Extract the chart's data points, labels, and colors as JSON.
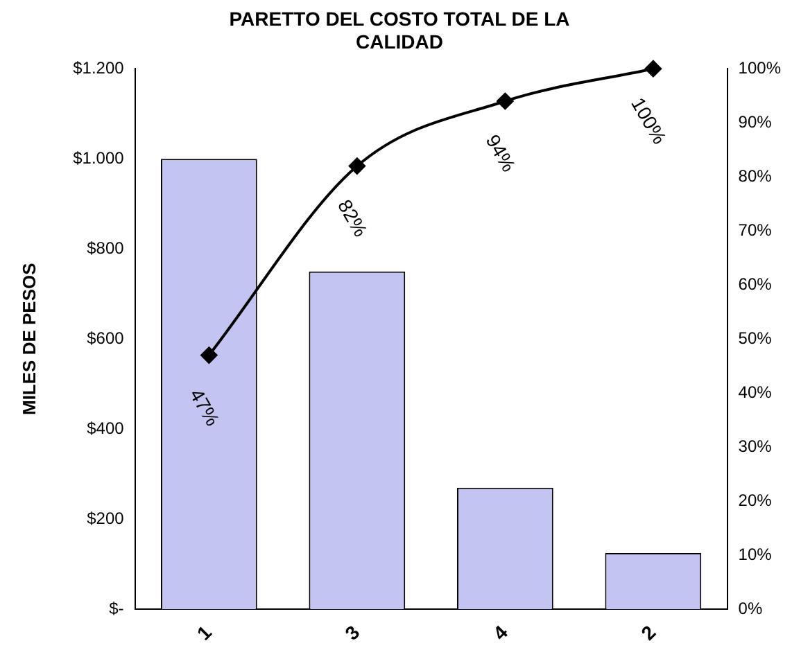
{
  "chart_data": {
    "type": "bar",
    "title": "PARETTO DEL COSTO TOTAL DE LA\nCALIDAD",
    "ylabel": "MILES DE PESOS",
    "categories": [
      "1",
      "3",
      "4",
      "2"
    ],
    "series": [
      {
        "color": "#c4c4f2",
        "values": [
          1000,
          750,
          270,
          125
        ]
      },
      {
        "type": "line",
        "axis": "y2",
        "color": "#000000",
        "values": [
          47,
          82,
          94,
          100
        ],
        "value_labels": [
          "47%",
          "82%",
          "94%",
          "100%"
        ]
      }
    ],
    "ylim": [
      0,
      1200
    ],
    "yticks": [
      {
        "value": 0,
        "label": "$-"
      },
      {
        "value": 200,
        "label": "$200"
      },
      {
        "value": 400,
        "label": "$400"
      },
      {
        "value": 600,
        "label": "$600"
      },
      {
        "value": 800,
        "label": "$800"
      },
      {
        "value": 1000,
        "label": "$1.000"
      },
      {
        "value": 1200,
        "label": "$1.200"
      }
    ],
    "y2lim": [
      0,
      100
    ],
    "y2ticks": [
      {
        "value": 0,
        "label": "0%"
      },
      {
        "value": 10,
        "label": "10%"
      },
      {
        "value": 20,
        "label": "20%"
      },
      {
        "value": 30,
        "label": "30%"
      },
      {
        "value": 40,
        "label": "40%"
      },
      {
        "value": 50,
        "label": "50%"
      },
      {
        "value": 60,
        "label": "60%"
      },
      {
        "value": 70,
        "label": "70%"
      },
      {
        "value": 80,
        "label": "80%"
      },
      {
        "value": 90,
        "label": "90%"
      },
      {
        "value": 100,
        "label": "100%"
      }
    ],
    "grid": false,
    "legend": false,
    "marker": "diamond"
  }
}
